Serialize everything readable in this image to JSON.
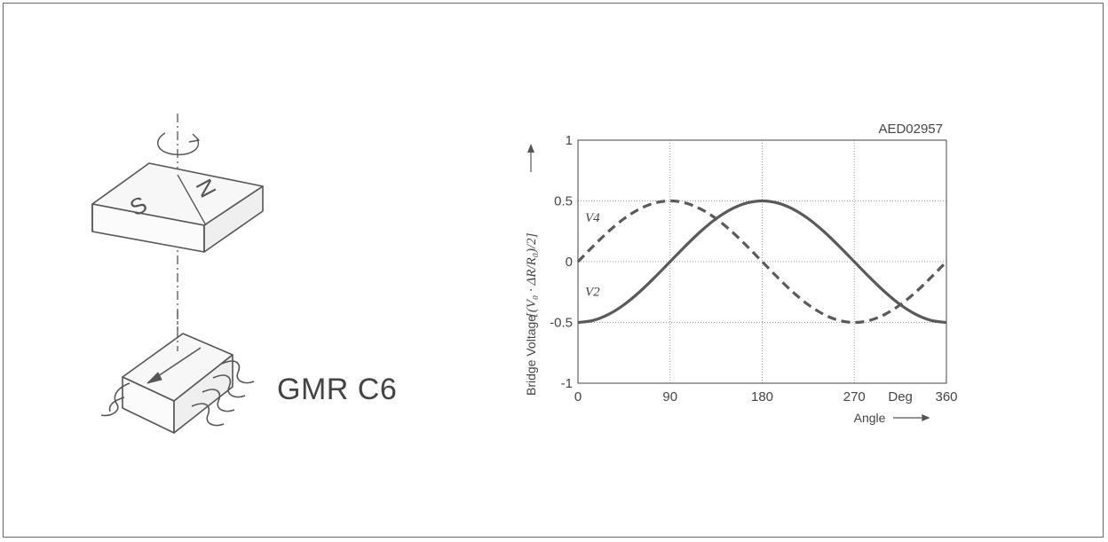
{
  "figure": {
    "part_label": "GMR C6",
    "magnet": {
      "pole_s": "S",
      "pole_n": "N"
    }
  },
  "chart_data": {
    "type": "line",
    "code": "AED02957",
    "xlabel": "Angle",
    "ylabel_prefix": "Bridge Voltage",
    "ylabel_formula": "[(V₀ · ΔR/R₀)/2]",
    "x_unit": "Deg",
    "xlim": [
      0,
      360
    ],
    "ylim": [
      -1,
      1
    ],
    "x_ticks": [
      0,
      90,
      180,
      270,
      360
    ],
    "x_tick_labels": [
      "0",
      "90",
      "180",
      "270",
      "360"
    ],
    "y_ticks": [
      1,
      0.5,
      0,
      -0.5,
      -1
    ],
    "y_tick_labels": [
      "1",
      "0.5",
      "0",
      "-0.5",
      "-1"
    ],
    "grid": true,
    "series": [
      {
        "name": "V4",
        "style": "dashed",
        "color": "#5a5a5a",
        "x": [
          0,
          15,
          30,
          45,
          60,
          75,
          90,
          105,
          120,
          135,
          150,
          165,
          180,
          195,
          210,
          225,
          240,
          255,
          270,
          285,
          300,
          315,
          330,
          345,
          360
        ],
        "values": [
          0,
          0.129,
          0.25,
          0.354,
          0.433,
          0.483,
          0.5,
          0.483,
          0.433,
          0.354,
          0.25,
          0.129,
          0,
          -0.129,
          -0.25,
          -0.354,
          -0.433,
          -0.483,
          -0.5,
          -0.483,
          -0.433,
          -0.354,
          -0.25,
          -0.129,
          0
        ]
      },
      {
        "name": "V2",
        "style": "solid",
        "color": "#5a5a5a",
        "x": [
          0,
          15,
          30,
          45,
          60,
          75,
          90,
          105,
          120,
          135,
          150,
          165,
          180,
          195,
          210,
          225,
          240,
          255,
          270,
          285,
          300,
          315,
          330,
          345,
          360
        ],
        "values": [
          -0.5,
          -0.483,
          -0.433,
          -0.354,
          -0.25,
          -0.129,
          0,
          0.129,
          0.25,
          0.354,
          0.433,
          0.483,
          0.5,
          0.483,
          0.433,
          0.354,
          0.25,
          0.129,
          0,
          -0.129,
          -0.25,
          -0.354,
          -0.433,
          -0.483,
          -0.5
        ]
      }
    ]
  }
}
